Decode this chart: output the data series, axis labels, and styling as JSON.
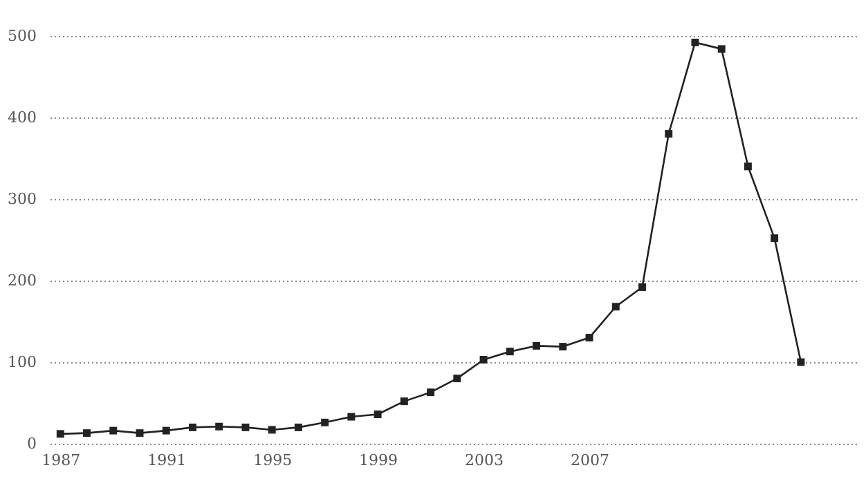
{
  "chart_data": {
    "type": "line",
    "x": [
      1987,
      1988,
      1989,
      1990,
      1991,
      1992,
      1993,
      1994,
      1995,
      1996,
      1997,
      1998,
      1999,
      2000,
      2001,
      2002,
      2003,
      2004,
      2005,
      2006,
      2007,
      2008,
      2009,
      2010,
      2011,
      2012,
      2013,
      2014,
      2015
    ],
    "series": [
      {
        "color": "#222222",
        "values": [
          12,
          13,
          16,
          13,
          16,
          20,
          21,
          20,
          17,
          20,
          26,
          33,
          36,
          52,
          63,
          80,
          103,
          113,
          120,
          119,
          130,
          168,
          192,
          380,
          492,
          484,
          340,
          252,
          100
        ]
      }
    ],
    "xlim": [
      1986.6,
      2017.2
    ],
    "xticks": [
      1987,
      1991,
      1995,
      1999,
      2003,
      2007
    ],
    "ylim": [
      0,
      500
    ],
    "yticks": [
      0,
      100,
      200,
      300,
      400,
      500
    ],
    "grid": "y",
    "marker": "square",
    "line_style": "solid"
  }
}
